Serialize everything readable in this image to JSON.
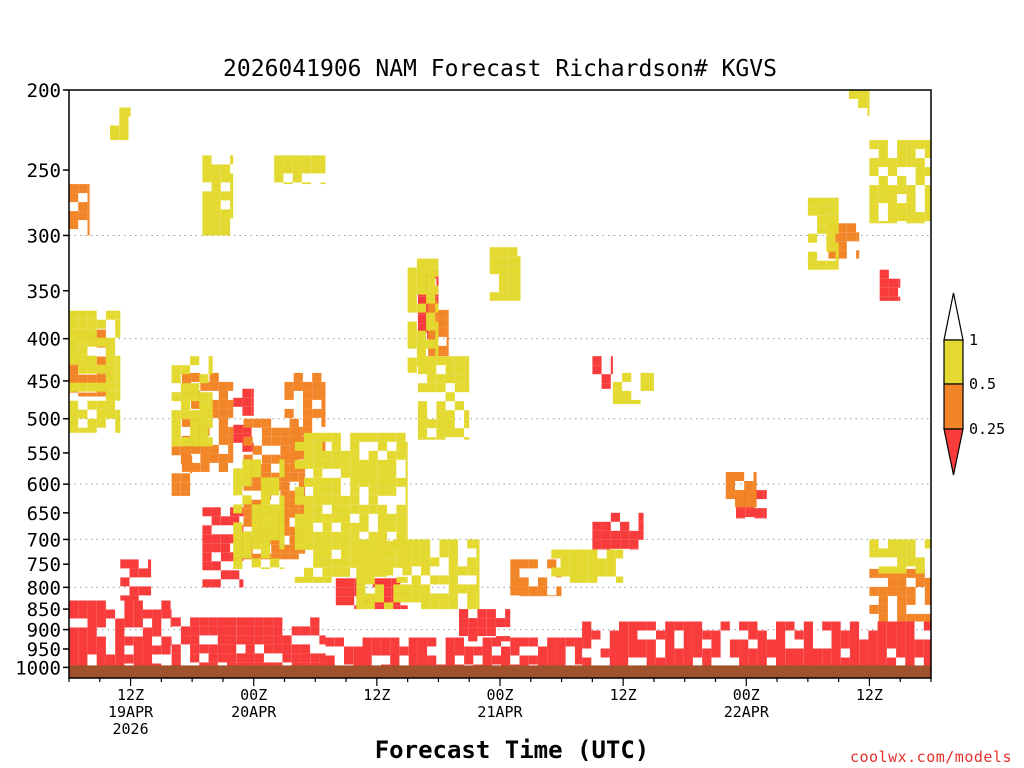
{
  "chart_data": {
    "type": "heatmap",
    "title": "2026041906 NAM Forecast Richardson# KGVS",
    "xlabel": "Forecast Time (UTC)",
    "ylabel": "",
    "credit": "coolwx.com/models",
    "y_axis": {
      "scale": "log-pressure",
      "ylim": [
        1030,
        200
      ],
      "tick_labels": [
        "200",
        "250",
        "300",
        "350",
        "400",
        "450",
        "500",
        "550",
        "600",
        "650",
        "700",
        "750",
        "800",
        "850",
        "900",
        "950",
        "1000"
      ],
      "tick_values": [
        200,
        250,
        300,
        350,
        400,
        450,
        500,
        550,
        600,
        650,
        700,
        750,
        800,
        850,
        900,
        950,
        1000
      ],
      "grid_levels": [
        300,
        400,
        500,
        600,
        700,
        800,
        900
      ]
    },
    "x_axis": {
      "xlim": [
        0,
        84
      ],
      "ticks": [
        {
          "hour": 6,
          "line1": "12Z",
          "line2": "19APR",
          "line3": "2026"
        },
        {
          "hour": 18,
          "line1": "00Z",
          "line2": "20APR",
          "line3": ""
        },
        {
          "hour": 30,
          "line1": "12Z",
          "line2": "",
          "line3": ""
        },
        {
          "hour": 42,
          "line1": "00Z",
          "line2": "21APR",
          "line3": ""
        },
        {
          "hour": 54,
          "line1": "12Z",
          "line2": "",
          "line3": ""
        },
        {
          "hour": 66,
          "line1": "00Z",
          "line2": "22APR",
          "line3": ""
        },
        {
          "hour": 78,
          "line1": "12Z",
          "line2": "",
          "line3": ""
        }
      ]
    },
    "legend": {
      "position": "right",
      "labels": [
        "1",
        "0.5",
        "0.25"
      ],
      "bins": [
        {
          "range": "0.5 - 1",
          "color": "#e3d930"
        },
        {
          "range": "0.25 - 0.5",
          "color": "#f28528"
        },
        {
          "range": "< 0.25",
          "color": "#f83c3c"
        }
      ]
    },
    "colors": {
      "yellow": "#e3d930",
      "orange": "#f28528",
      "red": "#f83c3c",
      "ground": "#a0522d"
    },
    "surface_pressure": 1000,
    "regions": [
      {
        "bin": "red",
        "hours": [
          0,
          10
        ],
        "p": [
          830,
          1000
        ]
      },
      {
        "bin": "red",
        "hours": [
          5,
          8
        ],
        "p": [
          740,
          830
        ]
      },
      {
        "bin": "red",
        "hours": [
          10,
          25
        ],
        "p": [
          870,
          1000
        ]
      },
      {
        "bin": "red",
        "hours": [
          13,
          17
        ],
        "p": [
          640,
          800
        ]
      },
      {
        "bin": "red",
        "hours": [
          16,
          18
        ],
        "p": [
          460,
          560
        ]
      },
      {
        "bin": "red",
        "hours": [
          25,
          50
        ],
        "p": [
          920,
          1000
        ]
      },
      {
        "bin": "red",
        "hours": [
          26,
          33
        ],
        "p": [
          780,
          850
        ]
      },
      {
        "bin": "red",
        "hours": [
          38,
          43
        ],
        "p": [
          850,
          930
        ]
      },
      {
        "bin": "red",
        "hours": [
          50,
          84
        ],
        "p": [
          880,
          1000
        ]
      },
      {
        "bin": "red",
        "hours": [
          51,
          56
        ],
        "p": [
          650,
          720
        ]
      },
      {
        "bin": "red",
        "hours": [
          65,
          68
        ],
        "p": [
          610,
          660
        ]
      },
      {
        "bin": "red",
        "hours": [
          34,
          36
        ],
        "p": [
          330,
          400
        ]
      },
      {
        "bin": "red",
        "hours": [
          79,
          81
        ],
        "p": [
          330,
          360
        ]
      },
      {
        "bin": "red",
        "hours": [
          51,
          53
        ],
        "p": [
          420,
          460
        ]
      },
      {
        "bin": "orange",
        "hours": [
          0,
          4
        ],
        "p": [
          390,
          470
        ]
      },
      {
        "bin": "orange",
        "hours": [
          0,
          2
        ],
        "p": [
          260,
          300
        ]
      },
      {
        "bin": "orange",
        "hours": [
          11,
          16
        ],
        "p": [
          440,
          580
        ]
      },
      {
        "bin": "orange",
        "hours": [
          17,
          23
        ],
        "p": [
          500,
          740
        ]
      },
      {
        "bin": "orange",
        "hours": [
          21,
          25
        ],
        "p": [
          440,
          560
        ]
      },
      {
        "bin": "orange",
        "hours": [
          10,
          12
        ],
        "p": [
          540,
          620
        ]
      },
      {
        "bin": "orange",
        "hours": [
          43,
          48
        ],
        "p": [
          740,
          820
        ]
      },
      {
        "bin": "orange",
        "hours": [
          35,
          37
        ],
        "p": [
          360,
          420
        ]
      },
      {
        "bin": "orange",
        "hours": [
          74,
          77
        ],
        "p": [
          290,
          320
        ]
      },
      {
        "bin": "orange",
        "hours": [
          78,
          84
        ],
        "p": [
          760,
          880
        ]
      },
      {
        "bin": "orange",
        "hours": [
          64,
          67
        ],
        "p": [
          580,
          640
        ]
      },
      {
        "bin": "yellow",
        "hours": [
          0,
          5
        ],
        "p": [
          370,
          520
        ]
      },
      {
        "bin": "yellow",
        "hours": [
          10,
          14
        ],
        "p": [
          420,
          540
        ]
      },
      {
        "bin": "yellow",
        "hours": [
          16,
          21
        ],
        "p": [
          560,
          760
        ]
      },
      {
        "bin": "yellow",
        "hours": [
          22,
          33
        ],
        "p": [
          520,
          790
        ]
      },
      {
        "bin": "yellow",
        "hours": [
          28,
          40
        ],
        "p": [
          700,
          850
        ]
      },
      {
        "bin": "yellow",
        "hours": [
          34,
          39
        ],
        "p": [
          420,
          530
        ]
      },
      {
        "bin": "yellow",
        "hours": [
          33,
          36
        ],
        "p": [
          320,
          440
        ]
      },
      {
        "bin": "yellow",
        "hours": [
          41,
          44
        ],
        "p": [
          310,
          360
        ]
      },
      {
        "bin": "yellow",
        "hours": [
          4,
          6
        ],
        "p": [
          210,
          230
        ]
      },
      {
        "bin": "yellow",
        "hours": [
          13,
          16
        ],
        "p": [
          240,
          300
        ]
      },
      {
        "bin": "yellow",
        "hours": [
          20,
          25
        ],
        "p": [
          240,
          260
        ]
      },
      {
        "bin": "yellow",
        "hours": [
          53,
          57
        ],
        "p": [
          440,
          480
        ]
      },
      {
        "bin": "yellow",
        "hours": [
          47,
          54
        ],
        "p": [
          720,
          790
        ]
      },
      {
        "bin": "yellow",
        "hours": [
          72,
          75
        ],
        "p": [
          270,
          330
        ]
      },
      {
        "bin": "yellow",
        "hours": [
          78,
          84
        ],
        "p": [
          230,
          290
        ]
      },
      {
        "bin": "yellow",
        "hours": [
          76,
          78
        ],
        "p": [
          200,
          215
        ]
      },
      {
        "bin": "yellow",
        "hours": [
          78,
          84
        ],
        "p": [
          700,
          770
        ]
      }
    ]
  }
}
